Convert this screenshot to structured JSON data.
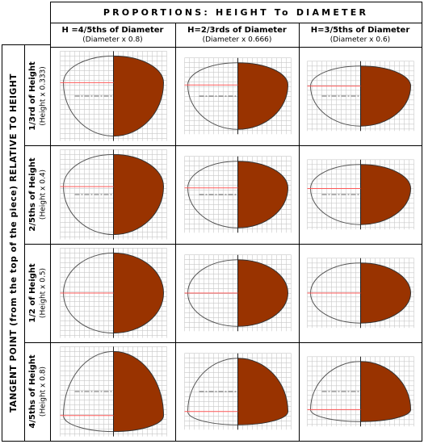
{
  "header": {
    "title": "PROPORTIONS: HEIGHT To DIAMETER"
  },
  "columns": [
    {
      "title": "H =4/5ths of Diameter",
      "subtitle": "(Diameter x 0.8)"
    },
    {
      "title": "H=2/3rds of Diameter",
      "subtitle": "(Diameter x 0.666)"
    },
    {
      "title": "H=3/5ths of Diameter",
      "subtitle": "(Diameter x 0.6)"
    }
  ],
  "rows": [
    {
      "title": "1/3rd of Height",
      "subtitle": "(Height x 0.333)"
    },
    {
      "title": "2/5ths of Height",
      "subtitle": "(Height x 0.4)"
    },
    {
      "title": "1/2 of Height",
      "subtitle": "(Height x 0.5)"
    },
    {
      "title": "4/5ths of Height",
      "subtitle": "(Height x 0.8)"
    }
  ],
  "side_label": "TANGENT POINT (from the top of the piece) RELATIVE TO HEIGHT"
}
